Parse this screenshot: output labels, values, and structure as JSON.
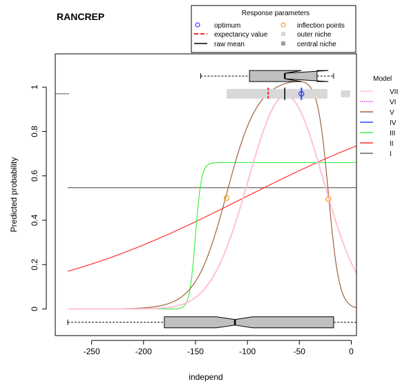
{
  "chart_data": {
    "type": "line",
    "title": "RANCREP",
    "xlabel": "independ",
    "ylabel": "Predicted probability",
    "xlim": [
      -285,
      5
    ],
    "ylim": [
      -0.12,
      1.15
    ],
    "x_ticks": [
      -250,
      -200,
      -150,
      -100,
      -50,
      0
    ],
    "y_ticks": [
      0,
      0.2,
      0.4,
      0.6,
      0.8,
      1
    ],
    "x_tick_labels": [
      "-250",
      "-200",
      "-150",
      "-100",
      "-50",
      "0"
    ],
    "y_tick_labels": [
      "0",
      "0.2",
      "0.4",
      "0.6",
      "0.8",
      "1"
    ],
    "x_range": [
      -273,
      5
    ],
    "series": [
      {
        "name": "VII",
        "color": "#ffc0d8",
        "model": "huisman7",
        "dashed": false
      },
      {
        "name": "VI",
        "color": "#e060e0",
        "model": "huisman6",
        "dashed": true
      },
      {
        "name": "V",
        "color": "#a0603c",
        "model": "huisman5",
        "dashed": false
      },
      {
        "name": "IV",
        "color": "#3040ff",
        "model": "huisman4",
        "dashed": false
      },
      {
        "name": "III",
        "color": "#40ee40",
        "model": "sigmoid_plateau",
        "plateau": 0.66,
        "midpoint": -150,
        "slope": 0.35
      },
      {
        "name": "II",
        "color": "#ff3030",
        "model": "logistic",
        "start_value": 0.17,
        "end_value": 0.735
      },
      {
        "name": "I",
        "color": "#666666",
        "model": "constant",
        "value": 0.547
      }
    ],
    "model_legend_title": "Model",
    "response_legend": {
      "title": "Response parameters",
      "items": [
        {
          "label": "optimum",
          "symbol": "circle",
          "color": "#3040ff"
        },
        {
          "label": "inflection points",
          "symbol": "circle",
          "color": "#f0a020"
        },
        {
          "label": "expectancy value",
          "symbol": "dash",
          "color": "#ff2020"
        },
        {
          "label": "outer niche",
          "symbol": "square",
          "color": "#d8d8d8"
        },
        {
          "label": "raw mean",
          "symbol": "line",
          "color": "#000000"
        },
        {
          "label": "central niche",
          "symbol": "square",
          "color": "#a0a0a0"
        }
      ]
    },
    "optimum": {
      "x": -48,
      "y": 0.97
    },
    "inflection_points": [
      {
        "x": -120,
        "y": 0.5
      },
      {
        "x": -22,
        "y": 0.495
      }
    ],
    "expectancy_value": {
      "x": -80,
      "y": 0.97
    },
    "raw_mean": {
      "x": -64,
      "y": 0.97
    },
    "outer_niche": {
      "from": -120,
      "to": -23,
      "y": 0.97
    },
    "central_niche": {
      "from": -10,
      "to": -1,
      "y": 0.97
    },
    "presence_boxplot": {
      "y": 1.05,
      "whisker_low": -145,
      "q1": -98,
      "median": -64,
      "q3": -33,
      "whisker_high": -17,
      "notch_low": -48,
      "notch_high": -22
    },
    "absence_boxplot": {
      "y": -0.06,
      "whisker_low": -273,
      "q1": -180,
      "median": -112,
      "q3": -17,
      "whisker_high": 5,
      "notch_low": -130,
      "notch_high": -95
    }
  }
}
